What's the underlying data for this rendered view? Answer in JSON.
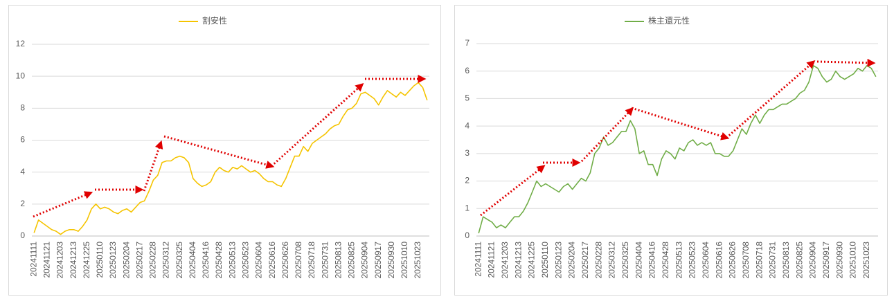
{
  "chart_data": [
    {
      "type": "line",
      "legend": "top",
      "grid": true,
      "categories": [
        "20241111",
        null,
        null,
        "20241121",
        null,
        null,
        "20241203",
        null,
        null,
        "20241213",
        null,
        null,
        "20241225",
        null,
        null,
        "20250110",
        null,
        null,
        "20250123",
        null,
        null,
        "20250204",
        null,
        null,
        "20250217",
        null,
        null,
        "20250228",
        null,
        null,
        "20250312",
        null,
        null,
        "20250325",
        null,
        null,
        "20250404",
        null,
        null,
        "20250416",
        null,
        null,
        "20250428",
        null,
        null,
        "20250513",
        null,
        null,
        "20250523",
        null,
        null,
        "20250604",
        null,
        null,
        "20250616",
        null,
        null,
        "20250626",
        null,
        null,
        "20250708",
        null,
        null,
        "20250718",
        null,
        null,
        "20250731",
        null,
        null,
        "20250813",
        null,
        null,
        "20250825",
        null,
        null,
        "20250904",
        null,
        null,
        "20250917",
        null,
        null,
        "20250930",
        null,
        null,
        "20251010",
        null,
        null,
        "20251023",
        null,
        null
      ],
      "series": [
        {
          "name": "割安性",
          "color": "#f5c400",
          "values": [
            0.2,
            1.0,
            0.8,
            0.6,
            0.4,
            0.3,
            0.1,
            0.3,
            0.4,
            0.4,
            0.3,
            0.6,
            1.0,
            1.7,
            2.0,
            1.7,
            1.8,
            1.7,
            1.5,
            1.4,
            1.6,
            1.7,
            1.5,
            1.8,
            2.1,
            2.2,
            2.8,
            3.5,
            3.8,
            4.6,
            4.7,
            4.7,
            4.9,
            5.0,
            4.9,
            4.6,
            3.6,
            3.3,
            3.1,
            3.2,
            3.4,
            4.0,
            4.3,
            4.1,
            4.0,
            4.3,
            4.2,
            4.4,
            4.2,
            4.0,
            4.1,
            3.9,
            3.6,
            3.4,
            3.4,
            3.2,
            3.1,
            3.6,
            4.3,
            5.0,
            5.0,
            5.6,
            5.3,
            5.8,
            6.0,
            6.2,
            6.4,
            6.7,
            6.9,
            7.0,
            7.5,
            7.9,
            8.0,
            8.3,
            8.9,
            9.0,
            8.8,
            8.6,
            8.2,
            8.7,
            9.1,
            8.9,
            8.7,
            9.0,
            8.8,
            9.1,
            9.4,
            9.6,
            9.3,
            8.5
          ]
        }
      ],
      "ylim": [
        0,
        12
      ],
      "yticks": [
        0,
        2,
        4,
        6,
        8,
        10,
        12
      ]
    },
    {
      "type": "line",
      "legend": "top",
      "grid": true,
      "categories": [
        "20241111",
        null,
        null,
        "20241121",
        null,
        null,
        "20241203",
        null,
        null,
        "20241213",
        null,
        null,
        "20241225",
        null,
        null,
        "20250110",
        null,
        null,
        "20250123",
        null,
        null,
        "20250204",
        null,
        null,
        "20250217",
        null,
        null,
        "20250228",
        null,
        null,
        "20250312",
        null,
        null,
        "20250325",
        null,
        null,
        "20250404",
        null,
        null,
        "20250416",
        null,
        null,
        "20250428",
        null,
        null,
        "20250513",
        null,
        null,
        "20250523",
        null,
        null,
        "20250604",
        null,
        null,
        "20250616",
        null,
        null,
        "20250626",
        null,
        null,
        "20250708",
        null,
        null,
        "20250718",
        null,
        null,
        "20250731",
        null,
        null,
        "20250813",
        null,
        null,
        "20250825",
        null,
        null,
        "20250904",
        null,
        null,
        "20250917",
        null,
        null,
        "20250930",
        null,
        null,
        "20251010",
        null,
        null,
        "20251023",
        null,
        null
      ],
      "series": [
        {
          "name": "株主還元性",
          "color": "#70ad47",
          "values": [
            0.1,
            0.7,
            0.6,
            0.5,
            0.3,
            0.4,
            0.3,
            0.5,
            0.7,
            0.7,
            0.9,
            1.2,
            1.6,
            2.0,
            1.8,
            1.9,
            1.8,
            1.7,
            1.6,
            1.8,
            1.9,
            1.7,
            1.9,
            2.1,
            2.0,
            2.3,
            3.0,
            3.2,
            3.6,
            3.3,
            3.4,
            3.6,
            3.8,
            3.8,
            4.2,
            3.9,
            3.0,
            3.1,
            2.6,
            2.6,
            2.2,
            2.8,
            3.1,
            3.0,
            2.8,
            3.2,
            3.1,
            3.4,
            3.5,
            3.3,
            3.4,
            3.3,
            3.4,
            3.0,
            3.0,
            2.9,
            2.9,
            3.1,
            3.5,
            3.9,
            3.7,
            4.1,
            4.4,
            4.1,
            4.4,
            4.6,
            4.6,
            4.7,
            4.8,
            4.8,
            4.9,
            5.0,
            5.2,
            5.3,
            5.6,
            6.2,
            6.1,
            5.8,
            5.6,
            5.7,
            6.0,
            5.8,
            5.7,
            5.8,
            5.9,
            6.1,
            6.0,
            6.2,
            6.1,
            5.8
          ]
        }
      ],
      "ylim": [
        0,
        7
      ],
      "yticks": [
        0,
        1,
        2,
        3,
        4,
        5,
        6,
        7
      ]
    }
  ]
}
